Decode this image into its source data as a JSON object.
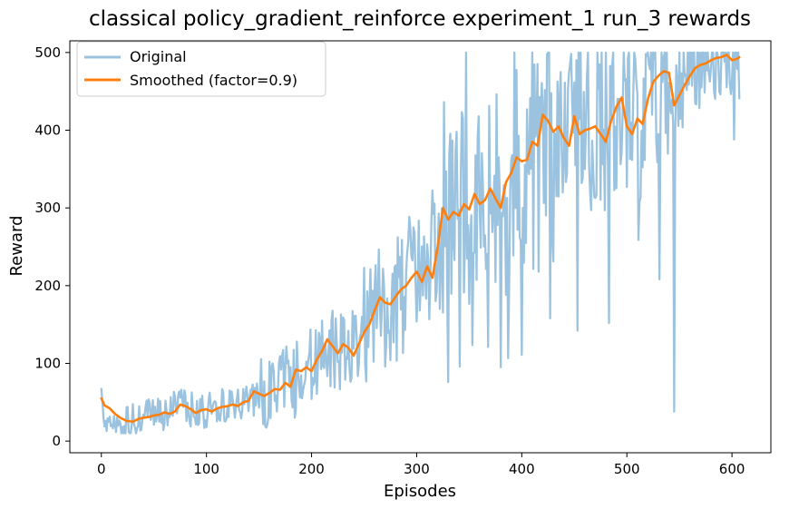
{
  "chart_data": {
    "type": "line",
    "title": "classical policy_gradient_reinforce experiment_1 run_3 rewards",
    "xlabel": "Episodes",
    "ylabel": "Reward",
    "xlim": [
      -30,
      637
    ],
    "ylim": [
      -15,
      515
    ],
    "xticks": [
      0,
      100,
      200,
      300,
      400,
      500,
      600
    ],
    "yticks": [
      0,
      100,
      200,
      300,
      400,
      500
    ],
    "grid": false,
    "legend_position": "top-left",
    "smoothing_factor": 0.9,
    "series": [
      {
        "name": "Original",
        "color": "#8ab8d9",
        "opacity": 0.85,
        "generation": "noisy episodic reward trace approximating the plotted curve",
        "control_points": [
          [
            0,
            55
          ],
          [
            5,
            22
          ],
          [
            10,
            25
          ],
          [
            20,
            18
          ],
          [
            30,
            25
          ],
          [
            40,
            30
          ],
          [
            50,
            32
          ],
          [
            60,
            36
          ],
          [
            70,
            40
          ],
          [
            80,
            45
          ],
          [
            90,
            38
          ],
          [
            100,
            40
          ],
          [
            110,
            42
          ],
          [
            120,
            45
          ],
          [
            130,
            48
          ],
          [
            140,
            52
          ],
          [
            150,
            58
          ],
          [
            160,
            62
          ],
          [
            170,
            68
          ],
          [
            180,
            75
          ],
          [
            190,
            90
          ],
          [
            200,
            95
          ],
          [
            210,
            110
          ],
          [
            220,
            120
          ],
          [
            230,
            118
          ],
          [
            240,
            125
          ],
          [
            250,
            140
          ],
          [
            260,
            165
          ],
          [
            270,
            178
          ],
          [
            280,
            185
          ],
          [
            290,
            200
          ],
          [
            300,
            215
          ],
          [
            310,
            220
          ],
          [
            320,
            255
          ],
          [
            330,
            290
          ],
          [
            340,
            295
          ],
          [
            350,
            305
          ],
          [
            360,
            300
          ],
          [
            370,
            320
          ],
          [
            380,
            310
          ],
          [
            390,
            330
          ],
          [
            400,
            360
          ],
          [
            410,
            380
          ],
          [
            420,
            410
          ],
          [
            430,
            405
          ],
          [
            440,
            395
          ],
          [
            450,
            410
          ],
          [
            460,
            400
          ],
          [
            470,
            405
          ],
          [
            480,
            395
          ],
          [
            490,
            415
          ],
          [
            500,
            400
          ],
          [
            510,
            405
          ],
          [
            520,
            440
          ],
          [
            530,
            470
          ],
          [
            540,
            475
          ],
          [
            545,
            440
          ],
          [
            550,
            450
          ],
          [
            560,
            470
          ],
          [
            570,
            480
          ],
          [
            580,
            490
          ],
          [
            590,
            494
          ],
          [
            600,
            492
          ],
          [
            607,
            494
          ]
        ],
        "min_value": 10,
        "max_value": 500,
        "notable_points": [
          [
            545,
            38
          ],
          [
            602,
            388
          ],
          [
            593,
            488
          ],
          [
            400,
            111
          ],
          [
            330,
            76
          ],
          [
            380,
            95
          ]
        ]
      },
      {
        "name": "Smoothed (factor=0.9)",
        "color": "#ff7f0e",
        "opacity": 1,
        "points": [
          [
            0,
            55
          ],
          [
            3,
            46
          ],
          [
            8,
            42
          ],
          [
            13,
            35
          ],
          [
            18,
            30
          ],
          [
            24,
            26
          ],
          [
            30,
            25
          ],
          [
            36,
            29
          ],
          [
            40,
            30
          ],
          [
            45,
            31
          ],
          [
            50,
            33
          ],
          [
            55,
            34
          ],
          [
            60,
            37
          ],
          [
            65,
            35
          ],
          [
            70,
            38
          ],
          [
            75,
            47
          ],
          [
            80,
            45
          ],
          [
            85,
            41
          ],
          [
            90,
            36
          ],
          [
            95,
            40
          ],
          [
            100,
            41
          ],
          [
            105,
            38
          ],
          [
            110,
            42
          ],
          [
            115,
            44
          ],
          [
            120,
            45
          ],
          [
            125,
            47
          ],
          [
            130,
            45
          ],
          [
            135,
            50
          ],
          [
            140,
            52
          ],
          [
            145,
            64
          ],
          [
            150,
            61
          ],
          [
            155,
            58
          ],
          [
            160,
            62
          ],
          [
            165,
            67
          ],
          [
            170,
            66
          ],
          [
            175,
            75
          ],
          [
            180,
            70
          ],
          [
            185,
            92
          ],
          [
            190,
            90
          ],
          [
            195,
            95
          ],
          [
            200,
            90
          ],
          [
            205,
            105
          ],
          [
            210,
            116
          ],
          [
            215,
            131
          ],
          [
            220,
            122
          ],
          [
            225,
            113
          ],
          [
            230,
            125
          ],
          [
            235,
            120
          ],
          [
            240,
            110
          ],
          [
            245,
            125
          ],
          [
            250,
            140
          ],
          [
            255,
            150
          ],
          [
            260,
            168
          ],
          [
            265,
            185
          ],
          [
            270,
            178
          ],
          [
            275,
            176
          ],
          [
            280,
            186
          ],
          [
            285,
            195
          ],
          [
            290,
            200
          ],
          [
            295,
            210
          ],
          [
            300,
            218
          ],
          [
            305,
            205
          ],
          [
            310,
            225
          ],
          [
            315,
            210
          ],
          [
            320,
            250
          ],
          [
            325,
            300
          ],
          [
            330,
            285
          ],
          [
            335,
            295
          ],
          [
            340,
            290
          ],
          [
            345,
            305
          ],
          [
            350,
            298
          ],
          [
            355,
            318
          ],
          [
            360,
            305
          ],
          [
            365,
            310
          ],
          [
            370,
            325
          ],
          [
            375,
            312
          ],
          [
            380,
            300
          ],
          [
            385,
            333
          ],
          [
            390,
            345
          ],
          [
            395,
            365
          ],
          [
            400,
            360
          ],
          [
            405,
            362
          ],
          [
            410,
            385
          ],
          [
            415,
            380
          ],
          [
            420,
            420
          ],
          [
            425,
            412
          ],
          [
            430,
            398
          ],
          [
            435,
            405
          ],
          [
            440,
            390
          ],
          [
            445,
            380
          ],
          [
            450,
            418
          ],
          [
            455,
            395
          ],
          [
            460,
            400
          ],
          [
            465,
            402
          ],
          [
            470,
            405
          ],
          [
            475,
            395
          ],
          [
            480,
            385
          ],
          [
            485,
            412
          ],
          [
            490,
            430
          ],
          [
            495,
            442
          ],
          [
            500,
            405
          ],
          [
            505,
            395
          ],
          [
            510,
            415
          ],
          [
            515,
            408
          ],
          [
            520,
            440
          ],
          [
            525,
            462
          ],
          [
            530,
            470
          ],
          [
            535,
            476
          ],
          [
            540,
            474
          ],
          [
            545,
            432
          ],
          [
            550,
            445
          ],
          [
            555,
            458
          ],
          [
            560,
            470
          ],
          [
            565,
            480
          ],
          [
            570,
            484
          ],
          [
            575,
            486
          ],
          [
            580,
            490
          ],
          [
            585,
            493
          ],
          [
            590,
            494
          ],
          [
            595,
            497
          ],
          [
            600,
            490
          ],
          [
            605,
            492
          ],
          [
            607,
            494
          ]
        ]
      }
    ]
  }
}
